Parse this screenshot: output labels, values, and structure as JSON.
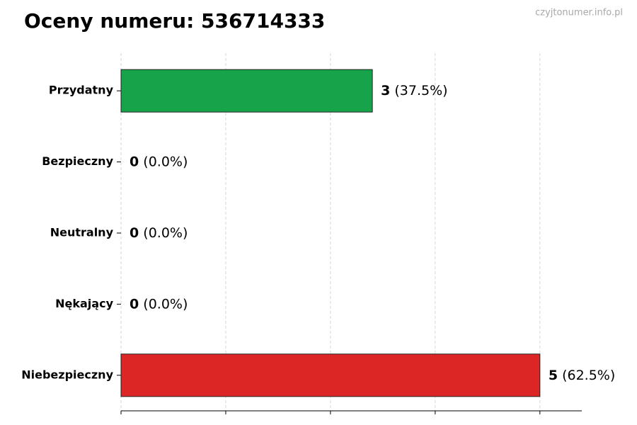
{
  "chart_data": {
    "type": "barh",
    "title": "Oceny numeru: 536714333",
    "watermark": "czyjtonumer.info.pl",
    "categories": [
      "Przydatny",
      "Bezpieczny",
      "Neutralny",
      "Nękający",
      "Niebezpieczny"
    ],
    "values": [
      3,
      0,
      0,
      0,
      5
    ],
    "share_labels": [
      "(37.5%)",
      "(0.0%)",
      "(0.0%)",
      "(0.0%)",
      "(62.5%)"
    ],
    "colors": [
      "#16a34a",
      "#22c55e",
      "#9ca3af",
      "#f59e0b",
      "#dc2626"
    ],
    "xlim": [
      0,
      5.5
    ],
    "xticks": [
      0,
      1.25,
      2.5,
      3.75,
      5
    ],
    "grid": true
  }
}
